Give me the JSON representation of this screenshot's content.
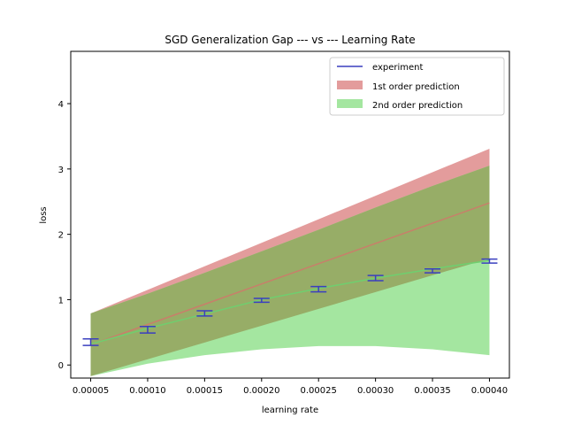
{
  "chart_data": {
    "type": "line",
    "title": "SGD Generalization Gap --- vs --- Learning Rate",
    "xlabel": "learning rate",
    "ylabel": "loss",
    "xlim": [
      3.25e-05,
      0.0004175
    ],
    "ylim": [
      -0.2,
      4.8
    ],
    "grid": false,
    "legend_position": "top-right",
    "x_ticks": [
      5e-05,
      0.0001,
      0.00015,
      0.0002,
      0.00025,
      0.0003,
      0.00035,
      0.0004
    ],
    "x_tick_labels": [
      "0.00005",
      "0.00010",
      "0.00015",
      "0.00020",
      "0.00025",
      "0.00030",
      "0.00035",
      "0.00040"
    ],
    "y_ticks": [
      0,
      1,
      2,
      3,
      4
    ],
    "y_tick_labels": [
      "0",
      "1",
      "2",
      "3",
      "4"
    ],
    "colors": {
      "experiment": "#3a3fbf",
      "first_order_line": "#c87f6a",
      "first_order_band": "#e39c9c",
      "second_order_line": "#6fcf6f",
      "second_order_band": "#a4e6a0",
      "overlap_band": "#97ad67"
    },
    "series": [
      {
        "name": "experiment",
        "kind": "errorbar",
        "x": [
          5e-05,
          0.0001,
          0.00015,
          0.0002,
          0.00025,
          0.0003,
          0.00035,
          0.0004
        ],
        "y": [
          0.35,
          0.54,
          0.79,
          0.99,
          1.16,
          1.33,
          1.44,
          1.59
        ],
        "yerr": [
          0.05,
          0.05,
          0.04,
          0.03,
          0.04,
          0.04,
          0.03,
          0.03
        ]
      },
      {
        "name": "1st order prediction",
        "kind": "band",
        "x": [
          5e-05,
          0.0004
        ],
        "center": [
          0.31,
          2.48
        ],
        "lower": [
          -0.17,
          1.63
        ],
        "upper": [
          0.79,
          3.31
        ]
      },
      {
        "name": "2nd order prediction",
        "kind": "band",
        "x": [
          5e-05,
          0.0001,
          0.00015,
          0.0002,
          0.00025,
          0.0003,
          0.00035,
          0.0004
        ],
        "center": [
          0.32,
          0.56,
          0.78,
          1.0,
          1.17,
          1.33,
          1.47,
          1.6
        ],
        "lower": [
          -0.17,
          0.02,
          0.15,
          0.24,
          0.29,
          0.29,
          0.24,
          0.15
        ],
        "upper": [
          0.79,
          1.09,
          1.41,
          1.74,
          2.07,
          2.41,
          2.74,
          3.05
        ]
      }
    ],
    "legend": [
      {
        "label": "experiment",
        "kind": "line",
        "color": "#3a3fbf"
      },
      {
        "label": "1st order prediction",
        "kind": "patch",
        "color": "#e39c9c"
      },
      {
        "label": "2nd order prediction",
        "kind": "patch",
        "color": "#a4e6a0"
      }
    ]
  }
}
